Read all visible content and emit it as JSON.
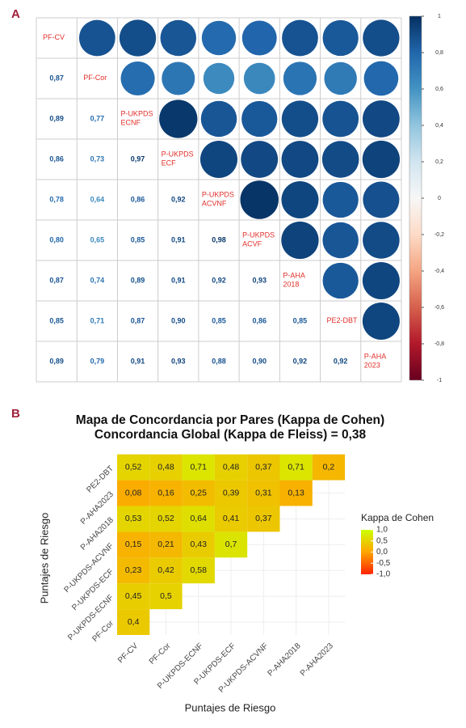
{
  "chart_data": [
    {
      "type": "corrplot",
      "panel_label": "A",
      "labels": [
        [
          "PF-CV"
        ],
        [
          "PF-Cor"
        ],
        [
          "P-UKPDS",
          "ECNF"
        ],
        [
          "P-UKPDS",
          "ECF"
        ],
        [
          "P-UKPDS",
          "ACVNF"
        ],
        [
          "P-UKPDS",
          "ACVF"
        ],
        [
          "P-AHA",
          "2018"
        ],
        [
          "PE2-DBT"
        ],
        [
          "P-AHA",
          "2023"
        ]
      ],
      "values": [
        [
          0.87
        ],
        [
          0.89,
          0.77
        ],
        [
          0.86,
          0.73,
          0.97
        ],
        [
          0.78,
          0.64,
          0.86,
          0.92
        ],
        [
          0.8,
          0.65,
          0.85,
          0.91,
          0.98
        ],
        [
          0.87,
          0.74,
          0.89,
          0.91,
          0.92,
          0.93
        ],
        [
          0.85,
          0.71,
          0.87,
          0.9,
          0.85,
          0.86,
          0.85
        ],
        [
          0.89,
          0.79,
          0.91,
          0.93,
          0.88,
          0.9,
          0.92,
          0.92
        ]
      ],
      "value_labels": [
        [
          "0,87"
        ],
        [
          "0,89",
          "0,77"
        ],
        [
          "0,86",
          "0,73",
          "0,97"
        ],
        [
          "0,78",
          "0,64",
          "0,86",
          "0,92"
        ],
        [
          "0,80",
          "0,65",
          "0,85",
          "0,91",
          "0,98"
        ],
        [
          "0,87",
          "0,74",
          "0,89",
          "0,91",
          "0,92",
          "0,93"
        ],
        [
          "0,85",
          "0,71",
          "0,87",
          "0,90",
          "0,85",
          "0,86",
          "0,85"
        ],
        [
          "0,89",
          "0,79",
          "0,91",
          "0,93",
          "0,88",
          "0,90",
          "0,92",
          "0,92"
        ]
      ],
      "clim": [
        -1,
        1
      ],
      "cticks": [
        1,
        {
          "value": 0.8,
          "label": "0,8"
        },
        {
          "value": 0.6,
          "label": "0,6"
        },
        {
          "value": 0.4,
          "label": "0,4"
        },
        {
          "value": 0.2,
          "label": "0,2"
        },
        0,
        {
          "value": -0.2,
          "label": "-0,2"
        },
        {
          "value": -0.4,
          "label": "-0,4"
        },
        {
          "value": -0.6,
          "label": "-0,6"
        },
        {
          "value": -0.8,
          "label": "-0,8"
        },
        -1
      ],
      "colors": [
        "#67001f",
        "#b2182b",
        "#d6604d",
        "#f4a582",
        "#fddbc7",
        "#f7f7f7",
        "#d1e5f0",
        "#92c5de",
        "#4393c3",
        "#2166ac",
        "#053061"
      ],
      "label_color": "#e0302a"
    },
    {
      "type": "heatmap",
      "panel_label": "B",
      "title": [
        "Mapa de Concordancia por Pares (Kappa de Cohen)",
        "Concordancia Global (Kappa de Fleiss) = 0,38"
      ],
      "x_label": "Puntajes de Riesgo",
      "y_label": "Puntajes de Riesgo",
      "x_categories": [
        "PF-CV",
        "PF-Cor",
        "P-UKPDS-ECNF",
        "P-UKPDS-ECF",
        "P-UKPDS-ACVNF",
        "P-AHA2018",
        "P-AHA2023"
      ],
      "y_categories": [
        "PF-Cor",
        "P-UKPDS-ECNF",
        "P-UKPDS-ECF",
        "P-UKPDS-ACVNF",
        "P-AHA2018",
        "P-AHA2023",
        "PE2-DBT"
      ],
      "values": [
        [
          0.4
        ],
        [
          0.45,
          0.5
        ],
        [
          0.23,
          0.42,
          0.58
        ],
        [
          0.15,
          0.21,
          0.43,
          0.7
        ],
        [
          0.53,
          0.52,
          0.64,
          0.41,
          0.37
        ],
        [
          0.08,
          0.16,
          0.25,
          0.39,
          0.31,
          0.13
        ],
        [
          0.52,
          0.48,
          0.71,
          0.48,
          0.37,
          0.71,
          0.2
        ]
      ],
      "value_labels": [
        [
          "0,4"
        ],
        [
          "0,45",
          "0,5"
        ],
        [
          "0,23",
          "0,42",
          "0,58"
        ],
        [
          "0,15",
          "0,21",
          "0,43",
          "0,7"
        ],
        [
          "0,53",
          "0,52",
          "0,64",
          "0,41",
          "0,37"
        ],
        [
          "0,08",
          "0,16",
          "0,25",
          "0,39",
          "0,31",
          "0,13"
        ],
        [
          "0,52",
          "0,48",
          "0,71",
          "0,48",
          "0,37",
          "0,71",
          "0,2"
        ]
      ],
      "legend_title": "Kappa de Cohen",
      "clim": [
        -1,
        1
      ],
      "cticks": [
        {
          "value": 1,
          "label": "1,0"
        },
        {
          "value": 0.5,
          "label": "0,5"
        },
        {
          "value": 0,
          "label": "0,0"
        },
        {
          "value": -0.5,
          "label": "-0,5"
        },
        {
          "value": -1,
          "label": "-1,0"
        }
      ],
      "colors": [
        "#ff2200",
        "#ffa500",
        "#ccff00"
      ]
    }
  ]
}
